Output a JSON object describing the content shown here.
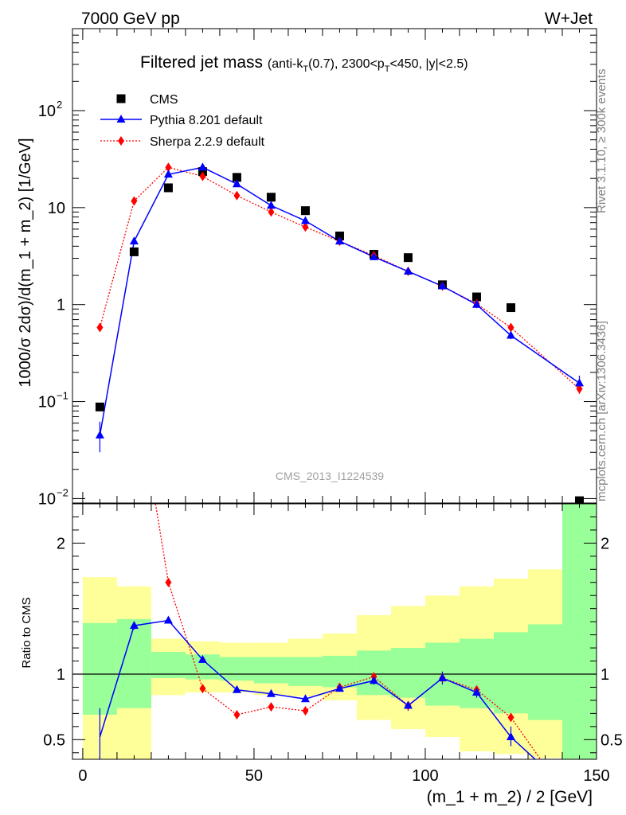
{
  "header": {
    "left": "7000 GeV pp",
    "right": "W+Jet"
  },
  "title": {
    "main": "Filtered jet mass",
    "sub_prefix": "(anti-k",
    "sub_sub1": "T",
    "sub_mid": "(0.7), 2300<p",
    "sub_sub2": "T",
    "sub_suffix": "<450, |y|<2.5)"
  },
  "side_labels": {
    "rivet": "Rivet 3.1.10, ≥ 300k events",
    "mcplots": "mcplots.cern.ch [arXiv:1306.3436]"
  },
  "watermark": "CMS_2013_I1224539",
  "legend": [
    {
      "key": "cms",
      "label": "CMS"
    },
    {
      "key": "pythia",
      "label": "Pythia 8.201 default"
    },
    {
      "key": "sherpa",
      "label": "Sherpa 2.2.9 default"
    }
  ],
  "colors": {
    "cms": "#000000",
    "pythia": "#0000ff",
    "sherpa": "#ff0000",
    "band_inner": "#99ff99",
    "band_outer": "#ffff99"
  },
  "chart_data": {
    "type": "line",
    "title": "Filtered jet mass",
    "xlabel": "(m_1 + m_2) / 2 [GeV]",
    "ylabel_main": "1000/σ 2dσ)/d(m_1 + m_2) [1/GeV]",
    "ylabel_ratio": "Ratio to CMS",
    "xlim": [
      -3,
      150
    ],
    "ylim_main": [
      0.009,
      700
    ],
    "ylim_ratio": [
      0.35,
      2.3
    ],
    "yscale_main": "log",
    "x_ticks": [
      "0",
      "50",
      "100",
      "150"
    ],
    "y_ticks_main": [
      {
        "value": 100,
        "base": "10",
        "exp": "2"
      },
      {
        "value": 10,
        "base": "10",
        "exp": ""
      },
      {
        "value": 1,
        "base": "1",
        "exp": ""
      },
      {
        "value": 0.1,
        "base": "10",
        "exp": "−1"
      },
      {
        "value": 0.01,
        "base": "10",
        "exp": "−2"
      }
    ],
    "y_ticks_ratio": [
      "0.5",
      "1",
      "2"
    ],
    "legend_position": "top-left",
    "x": [
      5,
      15,
      25,
      35,
      45,
      55,
      65,
      75,
      85,
      95,
      105,
      115,
      125,
      145
    ],
    "series": [
      {
        "name": "CMS",
        "values": [
          0.088,
          3.5,
          16,
          23.5,
          20.5,
          12.8,
          9.3,
          5.1,
          3.3,
          3.05,
          1.6,
          1.2,
          0.93,
          0.0095
        ]
      },
      {
        "name": "Pythia 8.201 default",
        "values": [
          0.045,
          4.5,
          22,
          26,
          17.5,
          10.5,
          7.3,
          4.5,
          3.1,
          2.2,
          1.55,
          1.0,
          0.48,
          0.155
        ],
        "err_low": [
          0.03,
          4.3,
          21.5,
          25.5,
          17.2,
          10.3,
          7.1,
          4.4,
          3.0,
          2.1,
          1.5,
          0.96,
          0.44,
          0.13
        ],
        "err_high": [
          0.062,
          4.7,
          22.5,
          26.5,
          17.8,
          10.7,
          7.5,
          4.6,
          3.2,
          2.3,
          1.6,
          1.04,
          0.52,
          0.185
        ]
      },
      {
        "name": "Sherpa 2.2.9 default",
        "values": [
          0.58,
          11.7,
          26,
          21,
          13.3,
          9.0,
          6.3,
          4.5,
          3.2,
          2.2,
          1.55,
          1.02,
          0.58,
          0.135
        ],
        "err_low": [
          0.57,
          11.5,
          25.6,
          20.7,
          13.1,
          8.9,
          6.2,
          4.4,
          3.1,
          2.15,
          1.5,
          0.99,
          0.55,
          0.12
        ],
        "err_high": [
          0.59,
          11.9,
          26.4,
          21.3,
          13.5,
          9.1,
          6.4,
          4.6,
          3.3,
          2.25,
          1.6,
          1.05,
          0.61,
          0.15
        ]
      }
    ],
    "ratio": {
      "x": [
        5,
        15,
        25,
        35,
        45,
        55,
        65,
        75,
        85,
        95,
        105,
        115,
        125,
        135
      ],
      "pythia": [
        0.52,
        1.37,
        1.41,
        1.11,
        0.88,
        0.85,
        0.81,
        0.89,
        0.95,
        0.76,
        0.97,
        0.86,
        0.52,
        0.28
      ],
      "pythia_err_low": [
        0.3,
        1.34,
        1.39,
        1.09,
        0.87,
        0.84,
        0.79,
        0.87,
        0.92,
        0.72,
        0.92,
        0.82,
        0.45,
        0.28
      ],
      "pythia_err_high": [
        0.74,
        1.4,
        1.43,
        1.13,
        0.89,
        0.86,
        0.83,
        0.91,
        0.98,
        0.79,
        1.02,
        0.9,
        0.6,
        0.28
      ],
      "sherpa": [
        6.6,
        3.3,
        1.7,
        0.89,
        0.69,
        0.75,
        0.72,
        0.9,
        0.98,
        0.76,
        0.97,
        0.88,
        0.67,
        0.3
      ],
      "band_edges": [
        0,
        10,
        20,
        30,
        40,
        50,
        60,
        70,
        80,
        90,
        100,
        110,
        120,
        130,
        140,
        150
      ],
      "band_inner_low": [
        0.69,
        0.74,
        0.97,
        0.96,
        0.95,
        0.93,
        0.91,
        0.9,
        0.84,
        0.82,
        0.76,
        0.74,
        0.7,
        0.65,
        null
      ],
      "band_inner_high": [
        1.39,
        1.42,
        1.17,
        1.15,
        1.13,
        1.13,
        1.13,
        1.14,
        1.18,
        1.2,
        1.24,
        1.27,
        1.32,
        1.38,
        "top"
      ],
      "band_outer_low": [
        0.35,
        0.35,
        0.84,
        0.86,
        0.86,
        0.84,
        0.83,
        0.8,
        0.65,
        0.58,
        0.52,
        0.41,
        0.39,
        0.36,
        null
      ],
      "band_outer_high": [
        1.74,
        1.67,
        1.27,
        1.25,
        1.24,
        1.24,
        1.27,
        1.31,
        1.45,
        1.52,
        1.6,
        1.67,
        1.73,
        1.8,
        null
      ]
    }
  }
}
